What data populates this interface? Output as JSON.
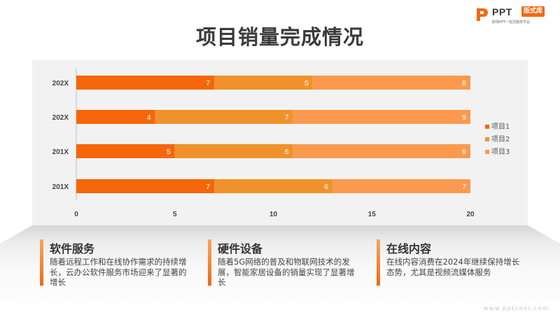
{
  "slide": {
    "title": "项目销量完成情况"
  },
  "logo": {
    "main": "PPT",
    "tag": "版式库",
    "sub": "职场PPT一站式服务平台"
  },
  "chart_data": {
    "type": "bar",
    "orientation": "horizontal",
    "stacked": true,
    "categories": [
      "202X",
      "202X",
      "201X",
      "201X"
    ],
    "series": [
      {
        "name": "项目1",
        "values": [
          7,
          4,
          5,
          7
        ],
        "color": "#f5660a"
      },
      {
        "name": "项目2",
        "values": [
          5,
          7,
          6,
          6
        ],
        "color": "#f0922c"
      },
      {
        "name": "项目3",
        "values": [
          8,
          9,
          9,
          7
        ],
        "color": "#fb9a4e"
      }
    ],
    "xlim": [
      0,
      20
    ],
    "x_ticks": [
      "0",
      "5",
      "10",
      "15",
      "20"
    ],
    "grid": false,
    "legend_position": "right"
  },
  "cards": [
    {
      "title": "软件服务",
      "text": "随着远程工作和在线协作需求的持续增长，云办公软件服务市场迎来了显著的增长"
    },
    {
      "title": "硬件设备",
      "text": "随着5G网络的普及和物联网技术的发展，智能家居设备的销量实现了显著增长"
    },
    {
      "title": "在线内容",
      "text": "在线内容消费在2024年继续保持增长态势，尤其是视频流媒体服务"
    }
  ],
  "watermark": "www.pptcool.com"
}
